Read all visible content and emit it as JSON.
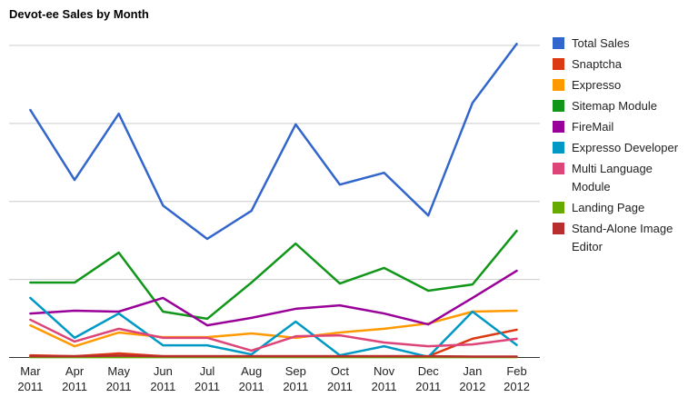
{
  "title": "Devot-ee Sales by Month",
  "chart_data": {
    "type": "line",
    "title": "Devot-ee Sales by Month",
    "categories": [
      "Mar 2011",
      "Apr 2011",
      "May 2011",
      "Jun 2011",
      "Jul 2011",
      "Aug 2011",
      "Sep 2011",
      "Oct 2011",
      "Nov 2011",
      "Dec 2011",
      "Jan 2012",
      "Feb 2012"
    ],
    "series": [
      {
        "name": "Total Sales",
        "color": "#3366cc",
        "values": [
          793,
          569,
          781,
          487,
          380,
          470,
          747,
          554,
          592,
          455,
          816,
          1005
        ]
      },
      {
        "name": "Snaptcha",
        "color": "#dc3912",
        "values": [
          7,
          4,
          13,
          4,
          4,
          4,
          4,
          4,
          4,
          4,
          60,
          89
        ]
      },
      {
        "name": "Expresso",
        "color": "#ff9900",
        "values": [
          103,
          36,
          80,
          65,
          65,
          77,
          63,
          80,
          92,
          109,
          147,
          150
        ]
      },
      {
        "name": "Sitemap Module",
        "color": "#109618",
        "values": [
          240,
          240,
          336,
          147,
          124,
          240,
          365,
          237,
          287,
          214,
          234,
          406
        ]
      },
      {
        "name": "FireMail",
        "color": "#990099",
        "values": [
          141,
          150,
          147,
          191,
          103,
          127,
          156,
          167,
          141,
          106,
          191,
          278
        ]
      },
      {
        "name": "Expresso Developer",
        "color": "#0099c6",
        "values": [
          191,
          63,
          141,
          39,
          39,
          10,
          115,
          7,
          36,
          2,
          147,
          40
        ]
      },
      {
        "name": "Multi Language Module",
        "color": "#dd4477",
        "values": [
          121,
          51,
          92,
          63,
          63,
          22,
          68,
          71,
          48,
          36,
          42,
          60
        ]
      },
      {
        "name": "Landing Page",
        "color": "#66aa00",
        "values": [
          1,
          1,
          1,
          1,
          1,
          1,
          1,
          1,
          1,
          1,
          1,
          1
        ]
      },
      {
        "name": "Stand-Alone Image Editor",
        "color": "#b82e2e",
        "values": [
          4,
          4,
          6,
          4,
          4,
          4,
          4,
          4,
          4,
          4,
          3,
          3
        ]
      }
    ],
    "xlabel": "",
    "ylabel": "",
    "ylim": [
      0,
      1000
    ],
    "y_gridline_step": 250,
    "y_tick_labels_shown": false,
    "grid": true,
    "legend_position": "right",
    "gridline_color": "#cccccc",
    "baseline_color": "#333333",
    "label_color": "#222222"
  }
}
